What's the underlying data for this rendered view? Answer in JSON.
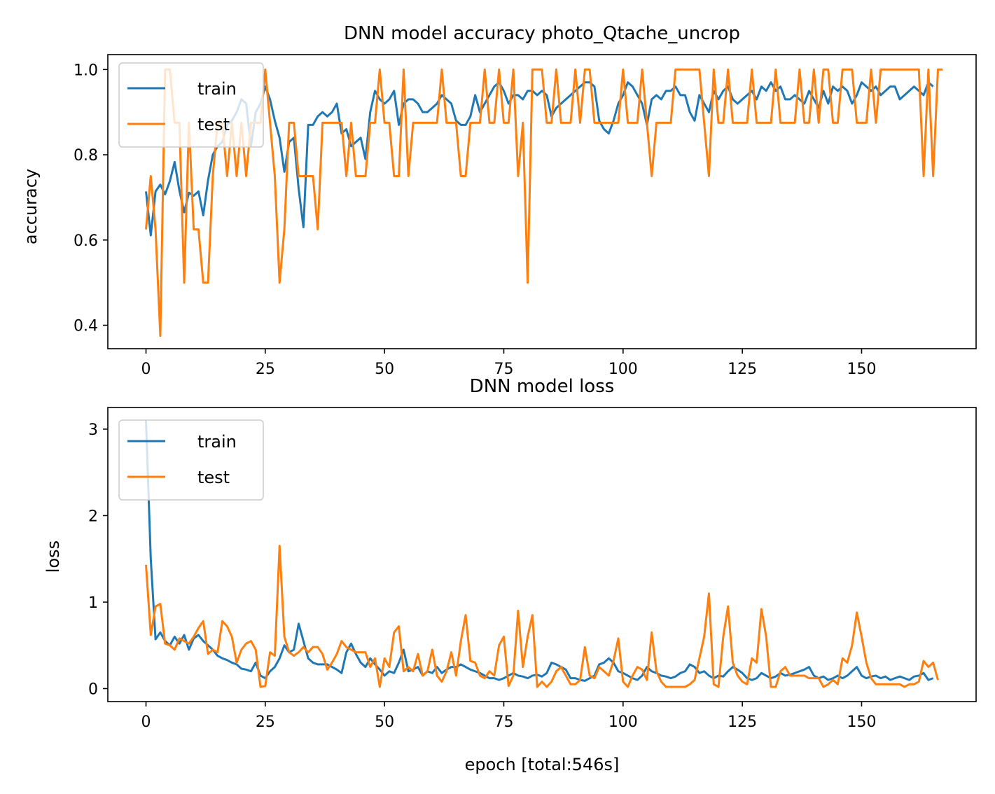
{
  "chart_data": [
    {
      "type": "line",
      "title": "DNN model accuracy photo_Qtache_uncrop",
      "xlabel": "",
      "ylabel": "accuracy",
      "xlim": [
        -8,
        174
      ],
      "ylim": [
        0.345,
        1.035
      ],
      "xticks": [
        0,
        25,
        50,
        75,
        100,
        125,
        150
      ],
      "yticks": [
        0.4,
        0.6,
        0.8,
        1.0
      ],
      "ytick_labels": [
        "0.4",
        "0.6",
        "0.8",
        "1.0"
      ],
      "grid": false,
      "legend": "upper left",
      "series": [
        {
          "name": "train",
          "color": "#1f77b4",
          "values": [
            0.714,
            0.611,
            0.714,
            0.73,
            0.707,
            0.738,
            0.783,
            0.716,
            0.665,
            0.711,
            0.704,
            0.714,
            0.658,
            0.74,
            0.8,
            0.82,
            0.83,
            0.87,
            0.88,
            0.9,
            0.93,
            0.92,
            0.82,
            0.9,
            0.92,
            0.96,
            0.93,
            0.88,
            0.84,
            0.76,
            0.83,
            0.84,
            0.72,
            0.63,
            0.87,
            0.87,
            0.89,
            0.9,
            0.89,
            0.9,
            0.92,
            0.85,
            0.86,
            0.82,
            0.83,
            0.84,
            0.79,
            0.9,
            0.95,
            0.93,
            0.92,
            0.93,
            0.95,
            0.87,
            0.92,
            0.93,
            0.93,
            0.92,
            0.9,
            0.9,
            0.91,
            0.92,
            0.94,
            0.93,
            0.92,
            0.88,
            0.87,
            0.87,
            0.89,
            0.94,
            0.9,
            0.92,
            0.94,
            0.96,
            0.97,
            0.95,
            0.92,
            0.94,
            0.94,
            0.93,
            0.95,
            0.95,
            0.94,
            0.95,
            0.94,
            0.89,
            0.91,
            0.92,
            0.93,
            0.94,
            0.95,
            0.96,
            0.97,
            0.97,
            0.96,
            0.88,
            0.86,
            0.85,
            0.88,
            0.92,
            0.94,
            0.97,
            0.96,
            0.94,
            0.92,
            0.87,
            0.93,
            0.94,
            0.93,
            0.95,
            0.95,
            0.96,
            0.94,
            0.94,
            0.9,
            0.88,
            0.94,
            0.92,
            0.9,
            0.95,
            0.93,
            0.95,
            0.96,
            0.93,
            0.92,
            0.93,
            0.94,
            0.95,
            0.93,
            0.96,
            0.95,
            0.97,
            0.95,
            0.96,
            0.93,
            0.93,
            0.94,
            0.93,
            0.92,
            0.95,
            0.93,
            0.91,
            0.95,
            0.92,
            0.96,
            0.95,
            0.96,
            0.95,
            0.92,
            0.94,
            0.97,
            0.96,
            0.95,
            0.96,
            0.94,
            0.95,
            0.96,
            0.96,
            0.93,
            0.94,
            0.95,
            0.96,
            0.95,
            0.94,
            0.97,
            0.96
          ]
        },
        {
          "name": "test",
          "color": "#ff7f0e",
          "values": [
            0.625,
            0.75,
            0.625,
            0.375,
            1.0,
            1.0,
            0.875,
            0.875,
            0.5,
            0.875,
            0.625,
            0.625,
            0.5,
            0.5,
            0.75,
            0.875,
            0.875,
            0.75,
            0.875,
            0.75,
            0.875,
            0.75,
            0.875,
            0.875,
            0.875,
            1.0,
            0.875,
            0.75,
            0.5,
            0.625,
            0.875,
            0.875,
            0.75,
            0.75,
            0.75,
            0.75,
            0.625,
            0.875,
            0.875,
            0.875,
            0.875,
            0.875,
            0.75,
            0.875,
            0.75,
            0.75,
            0.75,
            0.875,
            0.875,
            1.0,
            0.875,
            0.875,
            0.75,
            0.75,
            1.0,
            0.75,
            0.875,
            0.875,
            0.875,
            0.875,
            0.875,
            0.875,
            1.0,
            0.875,
            0.875,
            0.875,
            0.75,
            0.75,
            0.875,
            0.875,
            0.875,
            1.0,
            0.875,
            0.875,
            1.0,
            0.875,
            0.875,
            1.0,
            0.75,
            0.875,
            0.5,
            1.0,
            1.0,
            1.0,
            0.875,
            0.875,
            1.0,
            0.875,
            0.875,
            0.875,
            1.0,
            0.875,
            1.0,
            1.0,
            0.875,
            0.875,
            0.875,
            0.875,
            0.875,
            0.875,
            1.0,
            0.875,
            0.875,
            0.875,
            1.0,
            0.875,
            0.75,
            0.875,
            0.875,
            0.875,
            0.875,
            1.0,
            1.0,
            1.0,
            1.0,
            1.0,
            1.0,
            0.875,
            0.75,
            1.0,
            0.875,
            0.875,
            1.0,
            0.875,
            0.875,
            0.875,
            0.875,
            1.0,
            0.875,
            0.875,
            0.875,
            0.875,
            1.0,
            0.875,
            0.875,
            0.875,
            0.875,
            1.0,
            0.875,
            0.875,
            1.0,
            0.875,
            1.0,
            1.0,
            0.875,
            0.875,
            1.0,
            1.0,
            1.0,
            0.875,
            0.875,
            0.875,
            1.0,
            0.875,
            1.0,
            1.0,
            1.0,
            1.0,
            1.0,
            1.0,
            1.0,
            1.0,
            1.0,
            0.75,
            1.0,
            0.75,
            1.0,
            1.0
          ]
        }
      ]
    },
    {
      "type": "line",
      "title": "DNN model loss",
      "xlabel": "epoch [total:546s]",
      "ylabel": "loss",
      "xlim": [
        -8,
        174
      ],
      "ylim": [
        -0.15,
        3.25
      ],
      "xticks": [
        0,
        25,
        50,
        75,
        100,
        125,
        150
      ],
      "yticks": [
        0,
        1,
        2,
        3
      ],
      "ytick_labels": [
        "0",
        "1",
        "2",
        "3"
      ],
      "grid": false,
      "legend": "upper left",
      "series": [
        {
          "name": "train",
          "color": "#1f77b4",
          "values": [
            3.1,
            1.5,
            0.57,
            0.65,
            0.55,
            0.5,
            0.6,
            0.52,
            0.62,
            0.45,
            0.58,
            0.62,
            0.55,
            0.5,
            0.45,
            0.38,
            0.35,
            0.33,
            0.3,
            0.28,
            0.23,
            0.22,
            0.2,
            0.3,
            0.15,
            0.12,
            0.2,
            0.25,
            0.35,
            0.5,
            0.42,
            0.45,
            0.75,
            0.55,
            0.35,
            0.3,
            0.28,
            0.28,
            0.28,
            0.25,
            0.22,
            0.18,
            0.42,
            0.52,
            0.4,
            0.3,
            0.25,
            0.35,
            0.28,
            0.22,
            0.15,
            0.2,
            0.18,
            0.3,
            0.45,
            0.2,
            0.22,
            0.25,
            0.15,
            0.2,
            0.18,
            0.25,
            0.18,
            0.22,
            0.25,
            0.25,
            0.28,
            0.25,
            0.22,
            0.2,
            0.18,
            0.15,
            0.12,
            0.12,
            0.1,
            0.12,
            0.15,
            0.18,
            0.15,
            0.14,
            0.12,
            0.15,
            0.16,
            0.14,
            0.18,
            0.3,
            0.28,
            0.25,
            0.22,
            0.12,
            0.12,
            0.1,
            0.09,
            0.12,
            0.15,
            0.28,
            0.3,
            0.35,
            0.3,
            0.2,
            0.18,
            0.15,
            0.12,
            0.1,
            0.15,
            0.25,
            0.2,
            0.18,
            0.15,
            0.14,
            0.12,
            0.14,
            0.18,
            0.2,
            0.28,
            0.25,
            0.18,
            0.2,
            0.15,
            0.12,
            0.15,
            0.14,
            0.2,
            0.25,
            0.22,
            0.18,
            0.12,
            0.1,
            0.12,
            0.18,
            0.15,
            0.12,
            0.14,
            0.18,
            0.15,
            0.16,
            0.18,
            0.2,
            0.22,
            0.25,
            0.15,
            0.12,
            0.14,
            0.1,
            0.12,
            0.15,
            0.12,
            0.15,
            0.2,
            0.25,
            0.15,
            0.12,
            0.14,
            0.15,
            0.12,
            0.14,
            0.1,
            0.12,
            0.14,
            0.12,
            0.1,
            0.14,
            0.15,
            0.18,
            0.1,
            0.12
          ]
        },
        {
          "name": "test",
          "color": "#ff7f0e",
          "values": [
            1.43,
            0.62,
            0.95,
            0.98,
            0.52,
            0.5,
            0.45,
            0.58,
            0.55,
            0.52,
            0.6,
            0.7,
            0.78,
            0.4,
            0.45,
            0.42,
            0.78,
            0.72,
            0.6,
            0.3,
            0.45,
            0.52,
            0.55,
            0.45,
            0.02,
            0.03,
            0.42,
            0.38,
            1.65,
            0.6,
            0.42,
            0.38,
            0.42,
            0.48,
            0.42,
            0.48,
            0.48,
            0.4,
            0.22,
            0.3,
            0.4,
            0.55,
            0.48,
            0.45,
            0.42,
            0.42,
            0.42,
            0.25,
            0.35,
            0.02,
            0.35,
            0.25,
            0.65,
            0.72,
            0.2,
            0.25,
            0.2,
            0.4,
            0.15,
            0.2,
            0.45,
            0.15,
            0.08,
            0.2,
            0.42,
            0.15,
            0.55,
            0.85,
            0.32,
            0.3,
            0.15,
            0.12,
            0.2,
            0.15,
            0.5,
            0.6,
            0.03,
            0.15,
            0.9,
            0.25,
            0.6,
            0.85,
            0.02,
            0.08,
            0.02,
            0.08,
            0.2,
            0.25,
            0.15,
            0.05,
            0.05,
            0.1,
            0.48,
            0.15,
            0.12,
            0.25,
            0.2,
            0.15,
            0.32,
            0.58,
            0.08,
            0.02,
            0.15,
            0.25,
            0.22,
            0.1,
            0.65,
            0.2,
            0.08,
            0.02,
            0.02,
            0.02,
            0.02,
            0.02,
            0.05,
            0.1,
            0.35,
            0.6,
            1.1,
            0.05,
            0.02,
            0.6,
            0.95,
            0.3,
            0.15,
            0.08,
            0.05,
            0.35,
            0.3,
            0.92,
            0.6,
            0.02,
            0.02,
            0.2,
            0.25,
            0.15,
            0.15,
            0.15,
            0.15,
            0.12,
            0.12,
            0.12,
            0.02,
            0.05,
            0.1,
            0.05,
            0.35,
            0.3,
            0.5,
            0.88,
            0.6,
            0.3,
            0.12,
            0.05,
            0.05,
            0.05,
            0.05,
            0.05,
            0.05,
            0.02,
            0.05,
            0.05,
            0.08,
            0.32,
            0.25,
            0.3,
            0.1
          ]
        }
      ]
    }
  ]
}
